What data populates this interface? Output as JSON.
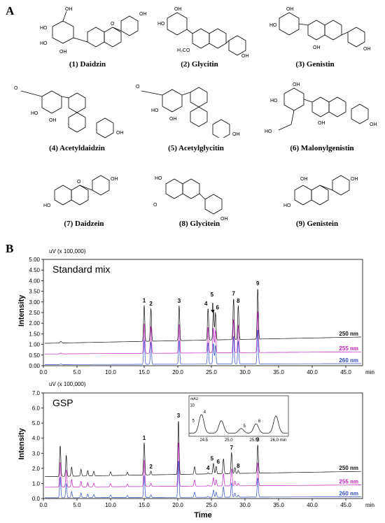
{
  "panel_a_label": "A",
  "panel_b_label": "B",
  "compounds": [
    {
      "label": "(1) Daidzin"
    },
    {
      "label": "(2) Glycitin"
    },
    {
      "label": "(3) Genistin"
    },
    {
      "label": "(4) Acetyldaidzin"
    },
    {
      "label": "(5) Acetylglycitin"
    },
    {
      "label": "(6) Malonylgenistin"
    },
    {
      "label": "(7) Daidzein"
    },
    {
      "label": "(8) Glycitein"
    },
    {
      "label": "(9) Genistein"
    }
  ],
  "atoms": {
    "oh": "OH",
    "ho": "HO",
    "o": "O",
    "h3co": "H₃CO"
  },
  "chart_data": [
    {
      "type": "line",
      "title": "Standard mix",
      "unit_label": "uV (x 100,000)",
      "ylabel": "Intensity",
      "xlabel": "",
      "xlim": [
        0,
        47.5
      ],
      "ylim": [
        0,
        5.0
      ],
      "x_ticks": [
        "0.0",
        "5.0",
        "10.0",
        "15.0",
        "20.0",
        "25.0",
        "30.0",
        "35.0",
        "40.0",
        "45.0",
        "min"
      ],
      "y_ticks": [
        "0.00",
        "0.50",
        "1.00",
        "1.50",
        "2.00",
        "2.50",
        "3.00",
        "3.50",
        "4.00",
        "4.50",
        "5.00"
      ],
      "series": [
        {
          "name": "250 nm",
          "color": "#111111",
          "baseline": 1.05,
          "baseline_end": 1.35
        },
        {
          "name": "255 nm",
          "color": "#c020c0",
          "baseline": 0.55,
          "baseline_end": 0.65
        },
        {
          "name": "260 nm",
          "color": "#3050c8",
          "baseline": 0.05,
          "baseline_end": 0.1
        }
      ],
      "peaks": [
        {
          "label": "1",
          "x": 15.0,
          "height": 1.7
        },
        {
          "label": "2",
          "x": 16.0,
          "height": 1.55
        },
        {
          "label": "3",
          "x": 20.2,
          "height": 1.65
        },
        {
          "label": "4",
          "x": 24.5,
          "height": 1.5
        },
        {
          "label": "5",
          "x": 25.3,
          "height": 1.45
        },
        {
          "label": "6",
          "x": 25.6,
          "height": 1.3
        },
        {
          "label": "7",
          "x": 28.3,
          "height": 1.95
        },
        {
          "label": "8",
          "x": 29.0,
          "height": 1.6
        },
        {
          "label": "9",
          "x": 31.9,
          "height": 2.4
        }
      ]
    },
    {
      "type": "line",
      "title": "GSP",
      "unit_label": "uV (x 100,000)",
      "ylabel": "Intensity",
      "xlabel": "Time",
      "xlim": [
        0,
        47.5
      ],
      "ylim": [
        0,
        7.0
      ],
      "x_ticks": [
        "0.0",
        "5.0",
        "10.0",
        "15.0",
        "20.0",
        "25.0",
        "30.0",
        "35.0",
        "40.0",
        "45.0",
        "min"
      ],
      "y_ticks": [
        "0.0",
        "1.0",
        "2.0",
        "3.0",
        "4.0",
        "5.0",
        "6.0",
        "7.0"
      ],
      "series": [
        {
          "name": "250 nm",
          "color": "#111111",
          "baseline": 1.45,
          "baseline_end": 1.8
        },
        {
          "name": "255 nm",
          "color": "#c020c0",
          "baseline": 0.75,
          "baseline_end": 0.9
        },
        {
          "name": "260 nm",
          "color": "#3050c8",
          "baseline": 0.05,
          "baseline_end": 0.12
        }
      ],
      "peaks": [
        {
          "label": "",
          "x": 2.5,
          "height": 2.0
        },
        {
          "label": "",
          "x": 3.4,
          "height": 1.4
        },
        {
          "label": "",
          "x": 4.2,
          "height": 0.6
        },
        {
          "label": "",
          "x": 5.6,
          "height": 0.45
        },
        {
          "label": "",
          "x": 6.6,
          "height": 0.35
        },
        {
          "label": "",
          "x": 7.5,
          "height": 0.3
        },
        {
          "label": "",
          "x": 10.0,
          "height": 0.25
        },
        {
          "label": "",
          "x": 12.5,
          "height": 0.2
        },
        {
          "label": "1",
          "x": 15.0,
          "height": 2.15
        },
        {
          "label": "2",
          "x": 16.0,
          "height": 0.25
        },
        {
          "label": "3",
          "x": 20.1,
          "height": 3.6
        },
        {
          "label": "",
          "x": 22.5,
          "height": 0.5
        },
        {
          "label": "4",
          "x": 24.5,
          "height": 0.08
        },
        {
          "label": "5",
          "x": 25.3,
          "height": 0.7
        },
        {
          "label": "6",
          "x": 25.7,
          "height": 0.5
        },
        {
          "label": "",
          "x": 26.8,
          "height": 1.0
        },
        {
          "label": "7",
          "x": 28.0,
          "height": 1.4
        },
        {
          "label": "",
          "x": 28.5,
          "height": 0.4
        },
        {
          "label": "8",
          "x": 29.0,
          "height": 0.2
        },
        {
          "label": "9",
          "x": 31.9,
          "height": 1.9
        }
      ],
      "inset": {
        "unit_label": "mAU",
        "x_ticks": [
          "24.5",
          "25.0",
          "25.5",
          "26.0 min"
        ],
        "y_ticks": [
          "5",
          "10"
        ],
        "xlim": [
          24.2,
          26.2
        ],
        "ylim": [
          0,
          13
        ],
        "peaks": [
          {
            "label": "4",
            "x": 24.45,
            "height": 6.0
          },
          {
            "label": "",
            "x": 24.85,
            "height": 4.0
          },
          {
            "label": "5",
            "x": 25.25,
            "height": 1.5
          },
          {
            "label": "6",
            "x": 25.55,
            "height": 3.0
          },
          {
            "label": "",
            "x": 25.95,
            "height": 5.5
          }
        ]
      }
    }
  ]
}
